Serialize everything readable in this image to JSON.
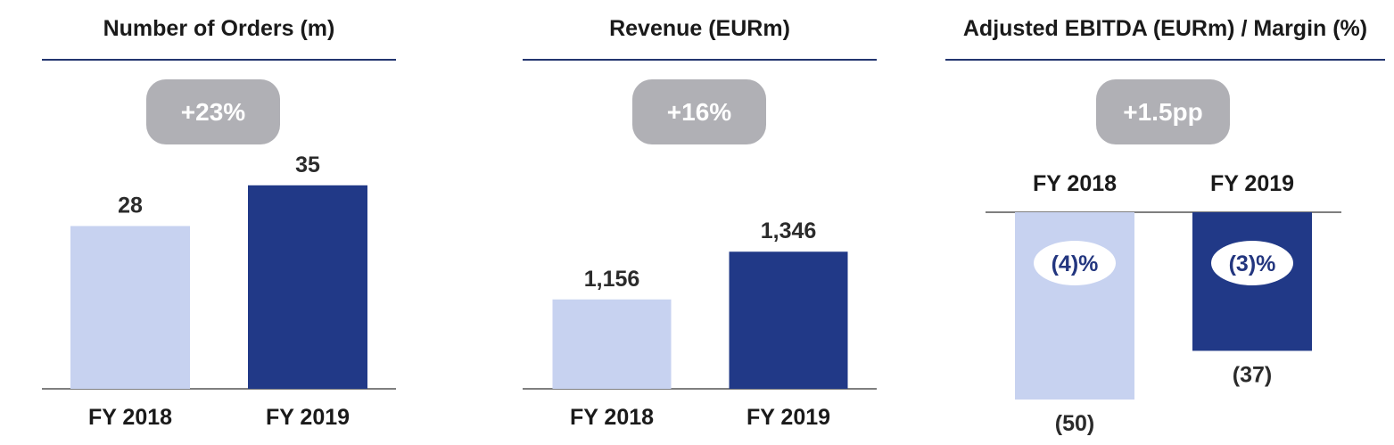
{
  "colors": {
    "fy2018": "#c7d2f0",
    "fy2019": "#213987",
    "rule": "#23356f",
    "badge": "#b0b0b5"
  },
  "chart_data": [
    {
      "type": "bar",
      "title": "Number of Orders (m)",
      "growth_badge": "+23%",
      "categories": [
        "FY 2018",
        "FY 2019"
      ],
      "values": [
        28,
        35
      ],
      "value_labels": [
        "28",
        "35"
      ]
    },
    {
      "type": "bar",
      "title": "Revenue (EURm)",
      "growth_badge": "+16%",
      "categories": [
        "FY 2018",
        "FY 2019"
      ],
      "values": [
        1156,
        1346
      ],
      "value_labels": [
        "1,156",
        "1,346"
      ]
    },
    {
      "type": "bar",
      "title": "Adjusted EBITDA (EURm) / Margin (%)",
      "growth_badge": "+1.5pp",
      "categories": [
        "FY 2018",
        "FY 2019"
      ],
      "values": [
        -50,
        -37
      ],
      "value_labels": [
        "(50)",
        "(37)"
      ],
      "margin_labels": [
        "(4)%",
        "(3)%"
      ],
      "margins": [
        -4,
        -3
      ]
    }
  ]
}
